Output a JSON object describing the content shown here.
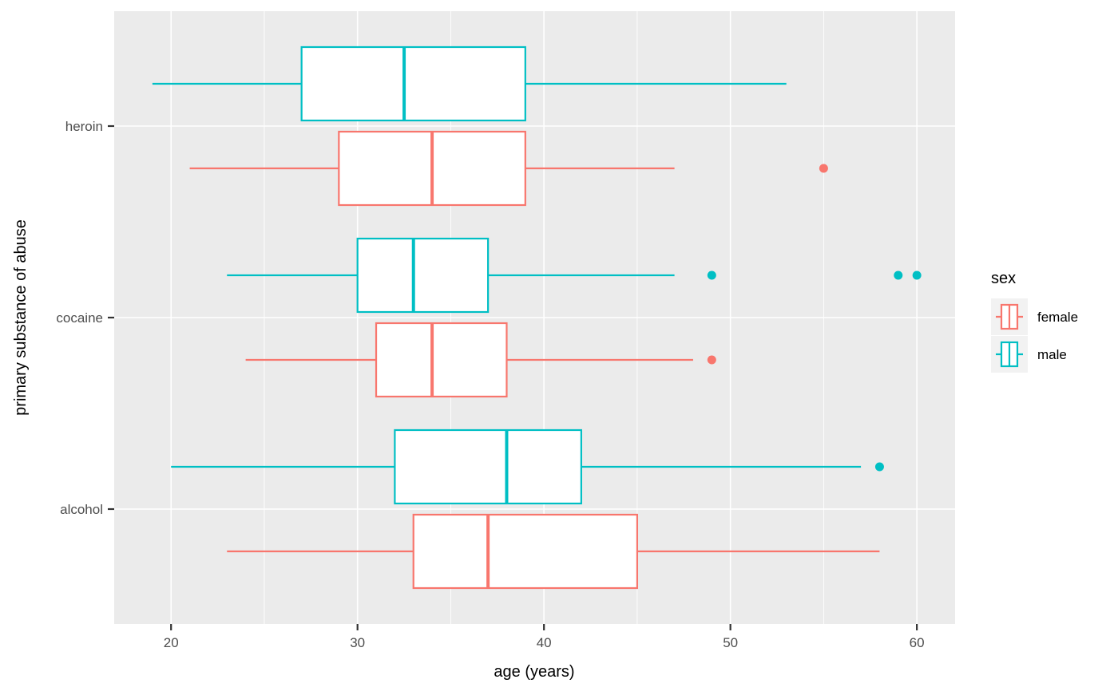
{
  "figure": {
    "background": "#FFFFFF",
    "panel_background": "#EBEBEB",
    "grid_color": "#FFFFFF",
    "tick_mark_color": "#333333",
    "tick_label_color": "#4D4D4D",
    "text_color": "#000000",
    "legend_key_background": "#F2F2F2",
    "box_fill": "#FFFFFF"
  },
  "chart_data": {
    "type": "boxplot",
    "orientation": "horizontal",
    "title": "",
    "xlabel": "age (years)",
    "ylabel": "primary substance of abuse",
    "x_ticks": [
      20,
      30,
      40,
      50,
      60
    ],
    "x_minor_gridlines": [
      25,
      35,
      45,
      55
    ],
    "xlim": [
      16.95,
      62.05
    ],
    "categories_bottom_to_top": [
      "alcohol",
      "cocaine",
      "heroin"
    ],
    "grid": "on",
    "legend": {
      "title": "sex",
      "position": "right",
      "entries": [
        {
          "label": "female",
          "color": "#F8766D"
        },
        {
          "label": "male",
          "color": "#00BFC4"
        }
      ]
    },
    "series": [
      {
        "group": "male",
        "color": "#00BFC4",
        "boxes": [
          {
            "category": "heroin",
            "whisker_low": 19,
            "q1": 27,
            "median": 32.5,
            "q3": 39,
            "whisker_high": 53,
            "outliers": []
          },
          {
            "category": "cocaine",
            "whisker_low": 23,
            "q1": 30,
            "median": 33,
            "q3": 37,
            "whisker_high": 47,
            "outliers": [
              49,
              59,
              60
            ]
          },
          {
            "category": "alcohol",
            "whisker_low": 20,
            "q1": 32,
            "median": 38,
            "q3": 42,
            "whisker_high": 57,
            "outliers": [
              58
            ]
          }
        ]
      },
      {
        "group": "female",
        "color": "#F8766D",
        "boxes": [
          {
            "category": "heroin",
            "whisker_low": 21,
            "q1": 29,
            "median": 34,
            "q3": 39,
            "whisker_high": 47,
            "outliers": [
              55
            ]
          },
          {
            "category": "cocaine",
            "whisker_low": 24,
            "q1": 31,
            "median": 34,
            "q3": 38,
            "whisker_high": 48,
            "outliers": [
              49
            ]
          },
          {
            "category": "alcohol",
            "whisker_low": 23,
            "q1": 33,
            "median": 37,
            "q3": 45,
            "whisker_high": 58,
            "outliers": []
          }
        ]
      }
    ]
  }
}
